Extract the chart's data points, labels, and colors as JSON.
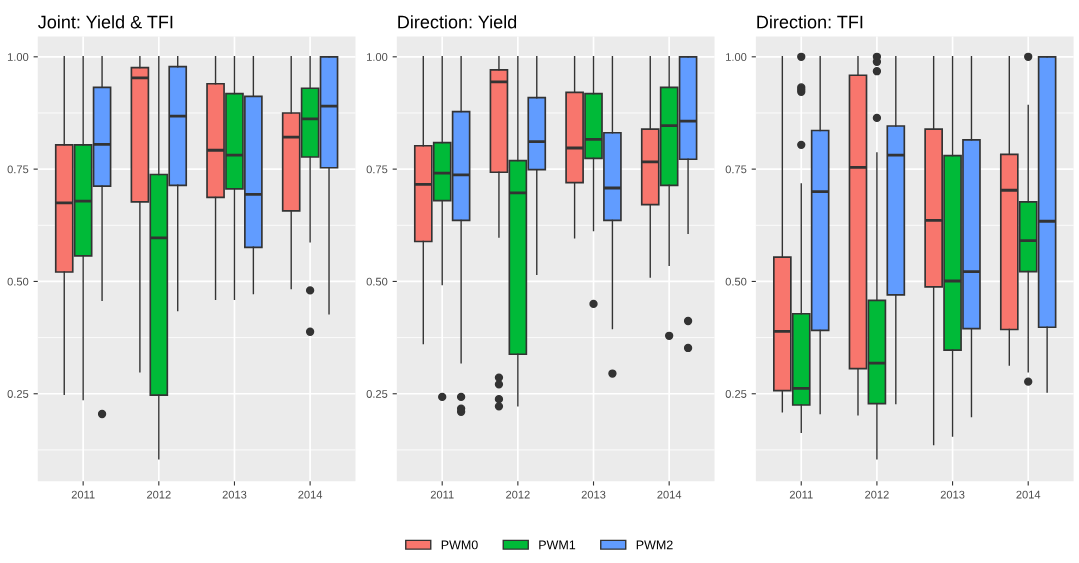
{
  "chart_data": [
    {
      "type": "box",
      "title": "Joint: Yield & TFI",
      "categories": [
        "2011",
        "2012",
        "2013",
        "2014"
      ],
      "ylim": [
        0.055,
        1.045
      ],
      "yticks": [
        {
          "value": 0.25,
          "label": "0.25"
        },
        {
          "value": 0.5,
          "label": "0.50"
        },
        {
          "value": 0.75,
          "label": "0.75"
        },
        {
          "value": 1.0,
          "label": "1.00"
        }
      ],
      "grid": true,
      "legend": "bottom",
      "series": [
        {
          "name": "PWM0",
          "color": "#f8766d",
          "boxes": [
            {
              "low": 0.249,
              "q1": 0.521,
              "median": 0.675,
              "q3": 0.804,
              "high": 1.0
            },
            {
              "low": 0.299,
              "q1": 0.677,
              "median": 0.953,
              "q3": 0.976,
              "high": 1.0
            },
            {
              "low": 0.46,
              "q1": 0.687,
              "median": 0.792,
              "q3": 0.94,
              "high": 1.0
            },
            {
              "low": 0.484,
              "q1": 0.657,
              "median": 0.821,
              "q3": 0.875,
              "high": 1.0
            }
          ]
        },
        {
          "name": "PWM1",
          "color": "#00ba38",
          "boxes": [
            {
              "low": 0.237,
              "q1": 0.557,
              "median": 0.679,
              "q3": 0.804,
              "high": 1.0
            },
            {
              "low": 0.105,
              "q1": 0.247,
              "median": 0.597,
              "q3": 0.738,
              "high": 1.0
            },
            {
              "low": 0.46,
              "q1": 0.706,
              "median": 0.781,
              "q3": 0.918,
              "high": 1.0
            },
            {
              "low": 0.588,
              "q1": 0.777,
              "median": 0.862,
              "q3": 0.93,
              "high": 1.0,
              "outliers": [
                0.48,
                0.388
              ]
            }
          ]
        },
        {
          "name": "PWM2",
          "color": "#619cff",
          "boxes": [
            {
              "low": 0.458,
              "q1": 0.712,
              "median": 0.805,
              "q3": 0.932,
              "high": 1.0,
              "outliers": [
                0.205
              ]
            },
            {
              "low": 0.435,
              "q1": 0.714,
              "median": 0.868,
              "q3": 0.978,
              "high": 1.0
            },
            {
              "low": 0.473,
              "q1": 0.576,
              "median": 0.694,
              "q3": 0.912,
              "high": 1.0
            },
            {
              "low": 0.428,
              "q1": 0.753,
              "median": 0.89,
              "q3": 1.0,
              "high": 1.0
            }
          ]
        }
      ]
    },
    {
      "type": "box",
      "title": "Direction: Yield",
      "categories": [
        "2011",
        "2012",
        "2013",
        "2014"
      ],
      "ylim": [
        0.055,
        1.045
      ],
      "yticks": [
        {
          "value": 0.25,
          "label": "0.25"
        },
        {
          "value": 0.5,
          "label": "0.50"
        },
        {
          "value": 0.75,
          "label": "0.75"
        },
        {
          "value": 1.0,
          "label": "1.00"
        }
      ],
      "grid": true,
      "series": [
        {
          "color": "#f8766d",
          "boxes": [
            {
              "low": 0.362,
              "q1": 0.589,
              "median": 0.716,
              "q3": 0.802,
              "high": 1.0
            },
            {
              "low": 0.599,
              "q1": 0.743,
              "median": 0.944,
              "q3": 0.971,
              "high": 1.0,
              "outliers": [
                0.286,
                0.271,
                0.238,
                0.222
              ]
            },
            {
              "low": 0.597,
              "q1": 0.72,
              "median": 0.797,
              "q3": 0.921,
              "high": 1.0
            },
            {
              "low": 0.51,
              "q1": 0.671,
              "median": 0.766,
              "q3": 0.839,
              "high": 1.0
            }
          ]
        },
        {
          "color": "#00ba38",
          "boxes": [
            {
              "low": 0.493,
              "q1": 0.68,
              "median": 0.741,
              "q3": 0.809,
              "high": 1.0,
              "outliers": [
                0.243
              ]
            },
            {
              "low": 0.223,
              "q1": 0.338,
              "median": 0.697,
              "q3": 0.769,
              "high": 1.0
            },
            {
              "low": 0.613,
              "q1": 0.774,
              "median": 0.816,
              "q3": 0.918,
              "high": 1.0,
              "outliers": [
                0.45
              ]
            },
            {
              "low": 0.536,
              "q1": 0.714,
              "median": 0.847,
              "q3": 0.932,
              "high": 1.0,
              "outliers": [
                0.379
              ]
            }
          ]
        },
        {
          "color": "#619cff",
          "boxes": [
            {
              "low": 0.319,
              "q1": 0.636,
              "median": 0.737,
              "q3": 0.878,
              "high": 1.0,
              "outliers": [
                0.243,
                0.217,
                0.21
              ]
            },
            {
              "low": 0.516,
              "q1": 0.749,
              "median": 0.811,
              "q3": 0.909,
              "high": 1.0
            },
            {
              "low": 0.395,
              "q1": 0.636,
              "median": 0.708,
              "q3": 0.831,
              "high": 1.0,
              "outliers": [
                0.295
              ]
            },
            {
              "low": 0.607,
              "q1": 0.772,
              "median": 0.857,
              "q3": 1.0,
              "high": 1.0,
              "outliers": [
                0.412,
                0.352
              ]
            }
          ]
        }
      ]
    },
    {
      "type": "box",
      "title": "Direction: TFI",
      "categories": [
        "2011",
        "2012",
        "2013",
        "2014"
      ],
      "ylim": [
        0.055,
        1.045
      ],
      "yticks": [
        {
          "value": 0.25,
          "label": "0.25"
        },
        {
          "value": 0.5,
          "label": "0.50"
        },
        {
          "value": 0.75,
          "label": "0.75"
        },
        {
          "value": 1.0,
          "label": "1.00"
        }
      ],
      "grid": true,
      "series": [
        {
          "color": "#f8766d",
          "boxes": [
            {
              "low": 0.21,
              "q1": 0.257,
              "median": 0.389,
              "q3": 0.554,
              "high": 1.0
            },
            {
              "low": 0.203,
              "q1": 0.306,
              "median": 0.754,
              "q3": 0.959,
              "high": 1.0
            },
            {
              "low": 0.137,
              "q1": 0.488,
              "median": 0.636,
              "q3": 0.839,
              "high": 1.0
            },
            {
              "low": 0.314,
              "q1": 0.393,
              "median": 0.703,
              "q3": 0.783,
              "high": 1.0
            }
          ]
        },
        {
          "color": "#00ba38",
          "boxes": [
            {
              "low": 0.164,
              "q1": 0.225,
              "median": 0.262,
              "q3": 0.428,
              "high": 0.717,
              "outliers": [
                1.0,
                0.932,
                0.927,
                0.922,
                0.804
              ]
            },
            {
              "low": 0.105,
              "q1": 0.228,
              "median": 0.318,
              "q3": 0.458,
              "high": 0.786,
              "outliers": [
                1.0,
                0.989,
                0.968,
                0.864
              ]
            },
            {
              "low": 0.156,
              "q1": 0.347,
              "median": 0.501,
              "q3": 0.78,
              "high": 1.0
            },
            {
              "low": 0.299,
              "q1": 0.522,
              "median": 0.591,
              "q3": 0.677,
              "high": 0.892,
              "outliers": [
                1.0,
                0.277
              ]
            }
          ]
        },
        {
          "color": "#619cff",
          "boxes": [
            {
              "low": 0.206,
              "q1": 0.391,
              "median": 0.7,
              "q3": 0.836,
              "high": 1.0
            },
            {
              "low": 0.228,
              "q1": 0.47,
              "median": 0.781,
              "q3": 0.846,
              "high": 1.0
            },
            {
              "low": 0.199,
              "q1": 0.395,
              "median": 0.522,
              "q3": 0.815,
              "high": 1.0
            },
            {
              "low": 0.254,
              "q1": 0.398,
              "median": 0.634,
              "q3": 1.0,
              "high": 1.0
            }
          ]
        }
      ]
    }
  ]
}
